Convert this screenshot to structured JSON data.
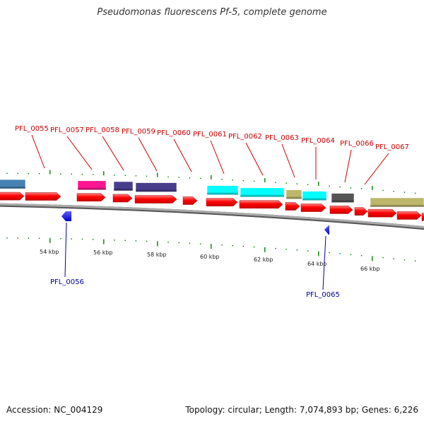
{
  "title": "Pseudomonas fluorescens Pf-5, complete genome",
  "footer": {
    "accession": "Accession: NC_004129",
    "summary": "Topology: circular; Length: 7,074,893 bp; Genes: 6,226"
  },
  "colors": {
    "forward_gene": "#ff0000",
    "reverse_gene": "#0000ff",
    "forward_label": "#cc0000",
    "reverse_label": "#000099",
    "tick": "#008000",
    "backbone": "#777777"
  },
  "scale_labels": [
    "54 kbp",
    "56 kbp",
    "58 kbp",
    "60 kbp",
    "62 kbp",
    "64 kbp",
    "66 kbp"
  ],
  "forward_labels": [
    "PFL_0055",
    "PFL_0057",
    "PFL_0058",
    "PFL_0059",
    "PFL_0060",
    "PFL_0061",
    "PFL_0062",
    "PFL_0063",
    "PFL_0064",
    "PFL_0066",
    "PFL_0067"
  ],
  "reverse_labels": [
    "PFL_0056",
    "PFL_0065"
  ],
  "cog_colors": [
    "#4682b4",
    "#ff1493",
    "#483d8b",
    "#483d8b",
    "#00ffff",
    "#00ffff",
    "#bdb76b",
    "#00ffff",
    "#555555",
    "#bdb76b"
  ]
}
